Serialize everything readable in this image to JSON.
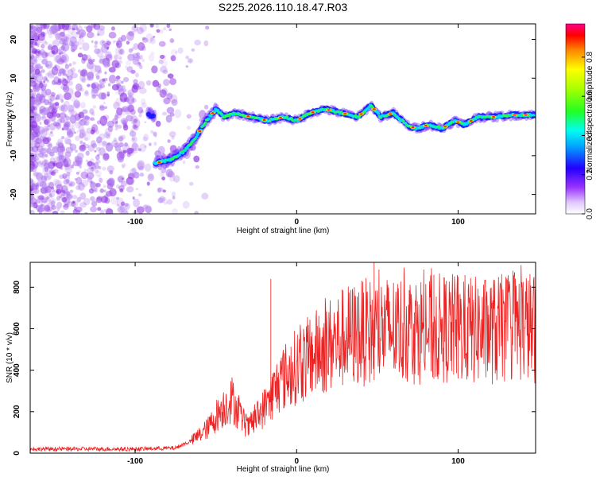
{
  "title": "S225.2026.110.18.47.R03",
  "colors": {
    "snr_line": "#ee2222",
    "axis": "#000000",
    "background": "#ffffff"
  },
  "chart_data": [
    {
      "type": "heatmap",
      "name": "spectrogram",
      "xlabel": "Height of straight line (km)",
      "ylabel": "Frequency (Hz)",
      "xlim": [
        -165,
        148
      ],
      "ylim": [
        -25,
        24
      ],
      "xticks": [
        -100,
        0,
        100
      ],
      "xtick_labels": [
        "-100",
        "0",
        "100"
      ],
      "yticks": [
        -20,
        -10,
        0,
        10,
        20
      ],
      "ytick_labels": [
        "-20",
        "-10",
        "0",
        "10",
        "20"
      ],
      "grid": false,
      "ridge": [
        {
          "x": -88,
          "y": -12
        },
        {
          "x": -78,
          "y": -11
        },
        {
          "x": -70,
          "y": -9
        },
        {
          "x": -62,
          "y": -5
        },
        {
          "x": -56,
          "y": -1
        },
        {
          "x": -50,
          "y": 2
        },
        {
          "x": -45,
          "y": 0
        },
        {
          "x": -38,
          "y": 1
        },
        {
          "x": -28,
          "y": 0
        },
        {
          "x": -18,
          "y": -1
        },
        {
          "x": -8,
          "y": 0
        },
        {
          "x": 0,
          "y": -1
        },
        {
          "x": 8,
          "y": 1
        },
        {
          "x": 18,
          "y": 2
        },
        {
          "x": 28,
          "y": 1
        },
        {
          "x": 38,
          "y": 0
        },
        {
          "x": 46,
          "y": 3
        },
        {
          "x": 52,
          "y": 0
        },
        {
          "x": 60,
          "y": 1
        },
        {
          "x": 68,
          "y": -2
        },
        {
          "x": 74,
          "y": -3
        },
        {
          "x": 82,
          "y": -2
        },
        {
          "x": 90,
          "y": -3
        },
        {
          "x": 98,
          "y": -1
        },
        {
          "x": 104,
          "y": -2
        },
        {
          "x": 112,
          "y": 0
        },
        {
          "x": 122,
          "y": 0
        },
        {
          "x": 135,
          "y": 0.5
        },
        {
          "x": 148,
          "y": 0.5
        }
      ]
    },
    {
      "type": "colorbar",
      "name": "colorbar",
      "label": "Normalized spectral amplitude",
      "range": [
        0,
        0.97
      ],
      "ticks": [
        0.0,
        0.2,
        0.4,
        0.6,
        0.8
      ],
      "tick_labels": [
        "0.0",
        "0.2",
        "0.4",
        "0.6",
        "0.8"
      ]
    },
    {
      "type": "line",
      "name": "snr",
      "xlabel": "Height of straight line (km)",
      "ylabel": "SNR (10 * v/v)",
      "xlim": [
        -165,
        148
      ],
      "ylim": [
        0,
        920
      ],
      "xticks": [
        -100,
        0,
        100
      ],
      "xtick_labels": [
        "-100",
        "0",
        "100"
      ],
      "yticks": [
        0,
        200,
        400,
        600,
        800
      ],
      "ytick_labels": [
        "0",
        "200",
        "400",
        "600",
        "800"
      ],
      "grid": false,
      "envelope": {
        "x": [
          -165,
          -100,
          -75,
          -65,
          -55,
          -48,
          -40,
          -35,
          -30,
          -20,
          -10,
          0,
          10,
          20,
          30,
          40,
          50,
          60,
          70,
          80,
          90,
          100,
          110,
          120,
          130,
          140,
          148
        ],
        "y": [
          20,
          20,
          25,
          60,
          120,
          200,
          260,
          180,
          120,
          220,
          350,
          420,
          470,
          520,
          560,
          580,
          590,
          595,
          600,
          595,
          600,
          600,
          590,
          590,
          600,
          620,
          600
        ]
      },
      "spikes": [
        {
          "x": -16,
          "y": 840
        },
        {
          "x": 48,
          "y": 920
        },
        {
          "x": 85,
          "y": 860
        },
        {
          "x": 100,
          "y": 850
        }
      ]
    }
  ]
}
